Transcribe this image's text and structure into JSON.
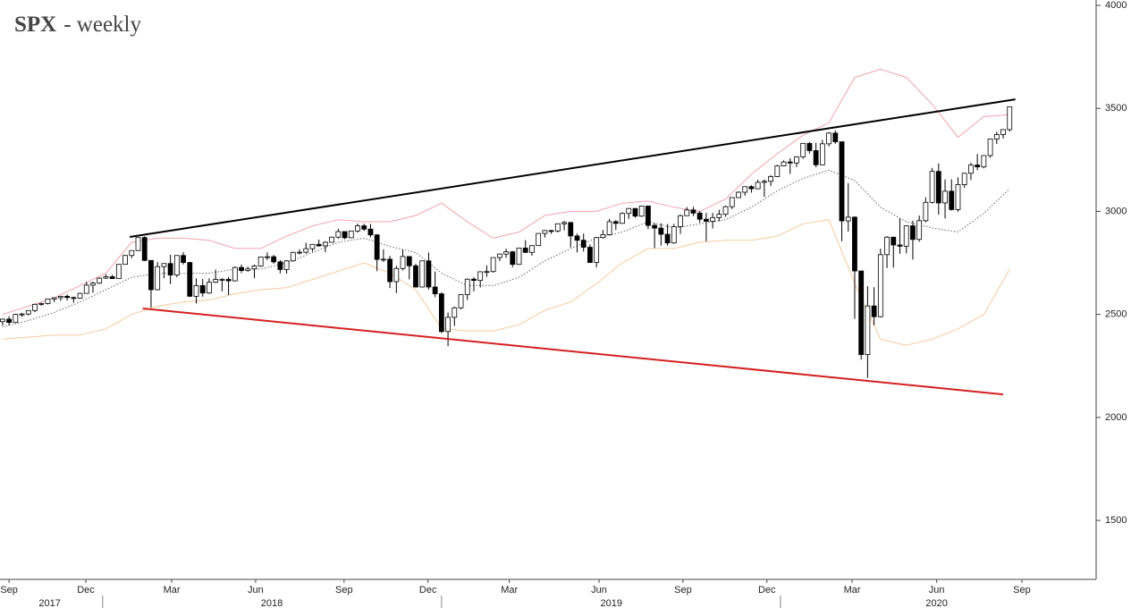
{
  "chart_data": {
    "type": "candlestick",
    "title": "SPX",
    "title_suffix": "- weekly",
    "up_color": "#ffffff",
    "down_color": "#000000",
    "x": [
      0,
      1,
      2,
      3,
      4,
      5,
      6,
      7,
      8,
      9,
      10,
      11,
      12,
      13,
      14,
      15,
      16,
      17,
      18,
      19,
      20,
      21,
      22,
      23,
      24,
      25,
      26,
      27,
      28,
      29,
      30,
      31,
      32,
      33,
      34,
      35,
      36,
      37,
      38,
      39,
      40,
      41,
      42,
      43,
      44,
      45,
      46,
      47,
      48,
      49,
      50,
      51,
      52,
      53,
      54,
      55,
      56,
      57,
      58,
      59,
      60,
      61,
      62,
      63,
      64,
      65,
      66,
      67,
      68,
      69,
      70,
      71,
      72,
      73,
      74,
      75,
      76,
      77,
      78,
      79,
      80,
      81,
      82,
      83,
      84,
      85,
      86,
      87,
      88,
      89,
      90,
      91,
      92,
      93,
      94,
      95,
      96,
      97,
      98,
      99,
      100,
      101,
      102,
      103,
      104,
      105,
      106,
      107,
      108,
      109,
      110,
      111,
      112,
      113,
      114,
      115,
      116,
      117,
      118,
      119,
      120,
      121,
      122,
      123,
      124,
      125,
      126,
      127,
      128,
      129,
      130,
      131,
      132,
      133,
      134,
      135,
      136,
      137,
      138,
      139,
      140,
      141,
      142,
      143,
      144,
      145,
      146,
      147,
      148,
      149,
      150,
      151,
      152,
      153,
      154,
      155,
      156
    ],
    "open": [
      2465,
      2477,
      2461,
      2500,
      2502,
      2519,
      2549,
      2553,
      2575,
      2581,
      2588,
      2582,
      2579,
      2602,
      2642,
      2652,
      2676,
      2683,
      2674,
      2743,
      2786,
      2810,
      2873,
      2762,
      2620,
      2732,
      2747,
      2691,
      2786,
      2752,
      2588,
      2640,
      2604,
      2656,
      2670,
      2670,
      2663,
      2728,
      2713,
      2721,
      2735,
      2779,
      2780,
      2755,
      2718,
      2760,
      2801,
      2802,
      2819,
      2840,
      2833,
      2850,
      2875,
      2902,
      2872,
      2905,
      2930,
      2914,
      2886,
      2767,
      2768,
      2659,
      2723,
      2781,
      2736,
      2633,
      2760,
      2633,
      2600,
      2417,
      2486,
      2532,
      2596,
      2671,
      2665,
      2707,
      2708,
      2776,
      2793,
      2804,
      2743,
      2822,
      2801,
      2834,
      2893,
      2907,
      2905,
      2940,
      2946,
      2881,
      2860,
      2826,
      2752,
      2873,
      2887,
      2950,
      2942,
      2990,
      3014,
      2977,
      3026,
      2932,
      2919,
      2889,
      2847,
      2926,
      2979,
      3007,
      2992,
      2962,
      2952,
      2970,
      2986,
      3023,
      3067,
      3093,
      3120,
      3110,
      3141,
      3146,
      3169,
      3221,
      3240,
      3235,
      3265,
      3330,
      3295,
      3226,
      3328,
      3380,
      3338,
      2954,
      2972,
      2711,
      2305,
      2541,
      2489,
      2790,
      2875,
      2837,
      2831,
      2930,
      2864,
      2955,
      3044,
      3194,
      3041,
      3098,
      3009,
      3130,
      3185,
      3225,
      3216,
      3271,
      3351,
      3373,
      3397
    ],
    "high": [
      2480,
      2491,
      2503,
      2508,
      2520,
      2552,
      2557,
      2576,
      2582,
      2589,
      2597,
      2586,
      2605,
      2658,
      2659,
      2680,
      2695,
      2692,
      2744,
      2789,
      2810,
      2873,
      2879,
      2763,
      2754,
      2748,
      2790,
      2787,
      2802,
      2754,
      2675,
      2672,
      2675,
      2717,
      2676,
      2682,
      2733,
      2742,
      2732,
      2742,
      2779,
      2801,
      2789,
      2764,
      2763,
      2804,
      2816,
      2848,
      2841,
      2863,
      2855,
      2877,
      2916,
      2902,
      2906,
      2941,
      2940,
      2939,
      2889,
      2816,
      2785,
      2736,
      2815,
      2782,
      2746,
      2761,
      2800,
      2708,
      2607,
      2509,
      2538,
      2598,
      2675,
      2681,
      2709,
      2738,
      2776,
      2795,
      2819,
      2808,
      2823,
      2861,
      2836,
      2894,
      2910,
      2910,
      2940,
      2954,
      2949,
      2892,
      2892,
      2840,
      2876,
      2910,
      2964,
      2958,
      2996,
      3017,
      3016,
      3028,
      3028,
      2943,
      2942,
      2939,
      2940,
      2985,
      3021,
      3022,
      3002,
      2993,
      2993,
      3008,
      3028,
      3067,
      3097,
      3120,
      3127,
      3154,
      3155,
      3176,
      3226,
      3247,
      3258,
      3268,
      3330,
      3337,
      3333,
      3347,
      3385,
      3393,
      3338,
      3137,
      2976,
      2711,
      2637,
      2632,
      2819,
      2880,
      2872,
      2965,
      2932,
      2955,
      2980,
      3068,
      3211,
      3233,
      3155,
      3156,
      3165,
      3187,
      3236,
      3279,
      3272,
      3352,
      3387,
      3399,
      3509
    ],
    "low": [
      2446,
      2447,
      2459,
      2488,
      2495,
      2511,
      2542,
      2548,
      2560,
      2566,
      2567,
      2557,
      2576,
      2600,
      2605,
      2648,
      2672,
      2672,
      2673,
      2742,
      2773,
      2808,
      2759,
      2533,
      2617,
      2675,
      2647,
      2681,
      2742,
      2585,
      2553,
      2586,
      2600,
      2652,
      2612,
      2594,
      2660,
      2701,
      2707,
      2676,
      2731,
      2764,
      2746,
      2699,
      2698,
      2756,
      2791,
      2795,
      2805,
      2828,
      2802,
      2854,
      2868,
      2865,
      2872,
      2897,
      2905,
      2874,
      2710,
      2755,
      2628,
      2604,
      2714,
      2670,
      2631,
      2631,
      2621,
      2584,
      2409,
      2346,
      2444,
      2525,
      2570,
      2612,
      2631,
      2682,
      2703,
      2759,
      2775,
      2729,
      2741,
      2798,
      2785,
      2832,
      2873,
      2891,
      2898,
      2908,
      2825,
      2801,
      2805,
      2750,
      2728,
      2868,
      2883,
      2910,
      2940,
      2964,
      2970,
      2973,
      2914,
      2822,
      2834,
      2834,
      2843,
      2891,
      2979,
      2978,
      2945,
      2855,
      2917,
      2952,
      2974,
      3011,
      3066,
      3076,
      3091,
      3107,
      3070,
      3124,
      3166,
      3220,
      3182,
      3215,
      3256,
      3281,
      3214,
      3224,
      3315,
      3328,
      2855,
      2902,
      2478,
      2280,
      2192,
      2447,
      2485,
      2725,
      2727,
      2794,
      2797,
      2766,
      2853,
      2947,
      3038,
      2984,
      2966,
      3004,
      2999,
      3115,
      3152,
      3200,
      3209,
      3260,
      3327,
      3354,
      3387
    ],
    "close": [
      2477,
      2461,
      2500,
      2502,
      2519,
      2549,
      2553,
      2575,
      2581,
      2588,
      2582,
      2579,
      2602,
      2642,
      2652,
      2676,
      2683,
      2674,
      2743,
      2786,
      2810,
      2873,
      2762,
      2620,
      2732,
      2747,
      2691,
      2786,
      2752,
      2588,
      2640,
      2604,
      2656,
      2670,
      2670,
      2663,
      2728,
      2713,
      2721,
      2735,
      2779,
      2780,
      2755,
      2718,
      2760,
      2801,
      2802,
      2819,
      2840,
      2833,
      2850,
      2875,
      2902,
      2872,
      2905,
      2930,
      2914,
      2886,
      2767,
      2768,
      2659,
      2723,
      2781,
      2736,
      2633,
      2760,
      2633,
      2600,
      2417,
      2486,
      2532,
      2596,
      2671,
      2665,
      2707,
      2708,
      2776,
      2793,
      2804,
      2743,
      2822,
      2801,
      2834,
      2893,
      2907,
      2905,
      2940,
      2946,
      2881,
      2860,
      2826,
      2752,
      2873,
      2887,
      2950,
      2942,
      2990,
      3014,
      2977,
      3026,
      2932,
      2919,
      2889,
      2847,
      2926,
      2979,
      3007,
      2992,
      2962,
      2952,
      2970,
      2986,
      3023,
      3067,
      3093,
      3120,
      3110,
      3141,
      3146,
      3169,
      3221,
      3240,
      3235,
      3265,
      3330,
      3295,
      3226,
      3328,
      3380,
      3338,
      2954,
      2972,
      2711,
      2305,
      2541,
      2489,
      2790,
      2875,
      2837,
      2831,
      2930,
      2864,
      2955,
      3044,
      3194,
      3041,
      3098,
      3009,
      3130,
      3185,
      3225,
      3216,
      3271,
      3351,
      3373,
      3397,
      3508
    ],
    "bands": [
      {
        "color": "#f2a3ab",
        "style": "solid",
        "x": [
          0,
          4,
          8,
          12,
          16,
          20,
          24,
          28,
          32,
          36,
          40,
          44,
          48,
          52,
          56,
          60,
          64,
          68,
          72,
          76,
          80,
          84,
          88,
          92,
          96,
          100,
          104,
          108,
          112,
          116,
          120,
          124,
          128,
          132,
          136,
          140,
          144,
          148,
          152,
          156
        ],
        "values": [
          2500,
          2540,
          2580,
          2640,
          2700,
          2850,
          2870,
          2870,
          2860,
          2820,
          2820,
          2880,
          2930,
          2960,
          2950,
          2950,
          2980,
          3040,
          2950,
          2870,
          2900,
          2980,
          3000,
          3000,
          3040,
          3050,
          3020,
          3000,
          3060,
          3180,
          3280,
          3370,
          3430,
          3650,
          3690,
          3650,
          3520,
          3360,
          3460,
          3470
        ]
      },
      {
        "color": "#666666",
        "style": "dotted",
        "x": [
          0,
          4,
          8,
          12,
          16,
          20,
          24,
          28,
          32,
          36,
          40,
          44,
          48,
          52,
          56,
          60,
          64,
          68,
          72,
          76,
          80,
          84,
          88,
          92,
          96,
          100,
          104,
          108,
          112,
          116,
          120,
          124,
          128,
          132,
          136,
          140,
          144,
          148,
          152,
          156
        ],
        "values": [
          2440,
          2470,
          2510,
          2560,
          2620,
          2680,
          2700,
          2700,
          2700,
          2720,
          2720,
          2750,
          2800,
          2850,
          2870,
          2830,
          2800,
          2700,
          2640,
          2640,
          2680,
          2760,
          2820,
          2870,
          2900,
          2950,
          2920,
          2940,
          2960,
          3020,
          3100,
          3160,
          3200,
          3150,
          3020,
          2950,
          2920,
          2900,
          2990,
          3110
        ]
      },
      {
        "color": "#f5cb9c",
        "style": "solid",
        "x": [
          0,
          4,
          8,
          12,
          16,
          20,
          24,
          28,
          32,
          36,
          40,
          44,
          48,
          52,
          56,
          60,
          64,
          68,
          72,
          76,
          80,
          84,
          88,
          92,
          96,
          100,
          104,
          108,
          112,
          116,
          120,
          124,
          128,
          132,
          136,
          140,
          144,
          148,
          152,
          156
        ],
        "values": [
          2380,
          2390,
          2400,
          2400,
          2430,
          2500,
          2540,
          2560,
          2570,
          2600,
          2620,
          2630,
          2670,
          2710,
          2750,
          2700,
          2620,
          2430,
          2420,
          2420,
          2450,
          2520,
          2560,
          2650,
          2750,
          2820,
          2820,
          2850,
          2860,
          2860,
          2880,
          2940,
          2960,
          2650,
          2380,
          2350,
          2380,
          2430,
          2500,
          2720
        ]
      }
    ],
    "trendlines": [
      {
        "color": "#000000",
        "x": [
          19.7,
          156.9
        ],
        "values": [
          2876,
          3544
        ]
      },
      {
        "color": "#d42020",
        "x": [
          21.7,
          155
        ],
        "values": [
          2529,
          2112
        ]
      }
    ],
    "xlim": [
      -0.4,
      169.4
    ],
    "ylim": [
      1214,
      4026
    ],
    "yticks": [
      1500,
      2000,
      2500,
      3000,
      3500,
      4000
    ],
    "xticks": [
      {
        "value": 1,
        "label": "Sep"
      },
      {
        "value": 12.9,
        "label": "Dec"
      },
      {
        "value": 26.2,
        "label": "Mar"
      },
      {
        "value": 39.2,
        "label": "Jun"
      },
      {
        "value": 52.9,
        "label": "Sep"
      },
      {
        "value": 65.9,
        "label": "Dec"
      },
      {
        "value": 78.5,
        "label": "Mar"
      },
      {
        "value": 92.4,
        "label": "Jun"
      },
      {
        "value": 105.4,
        "label": "Sep"
      },
      {
        "value": 118.4,
        "label": "Dec"
      },
      {
        "value": 131.6,
        "label": "Mar"
      },
      {
        "value": 144.7,
        "label": "Jun"
      },
      {
        "value": 157.9,
        "label": "Sep"
      }
    ],
    "year_ticks": [
      {
        "value": 7.3,
        "label": "2017"
      },
      {
        "value": 41.7,
        "label": "2018"
      },
      {
        "value": 94.3,
        "label": "2019"
      },
      {
        "value": 144.7,
        "label": "2020"
      }
    ],
    "year_dividers": [
      15.5,
      68,
      120.5
    ]
  }
}
